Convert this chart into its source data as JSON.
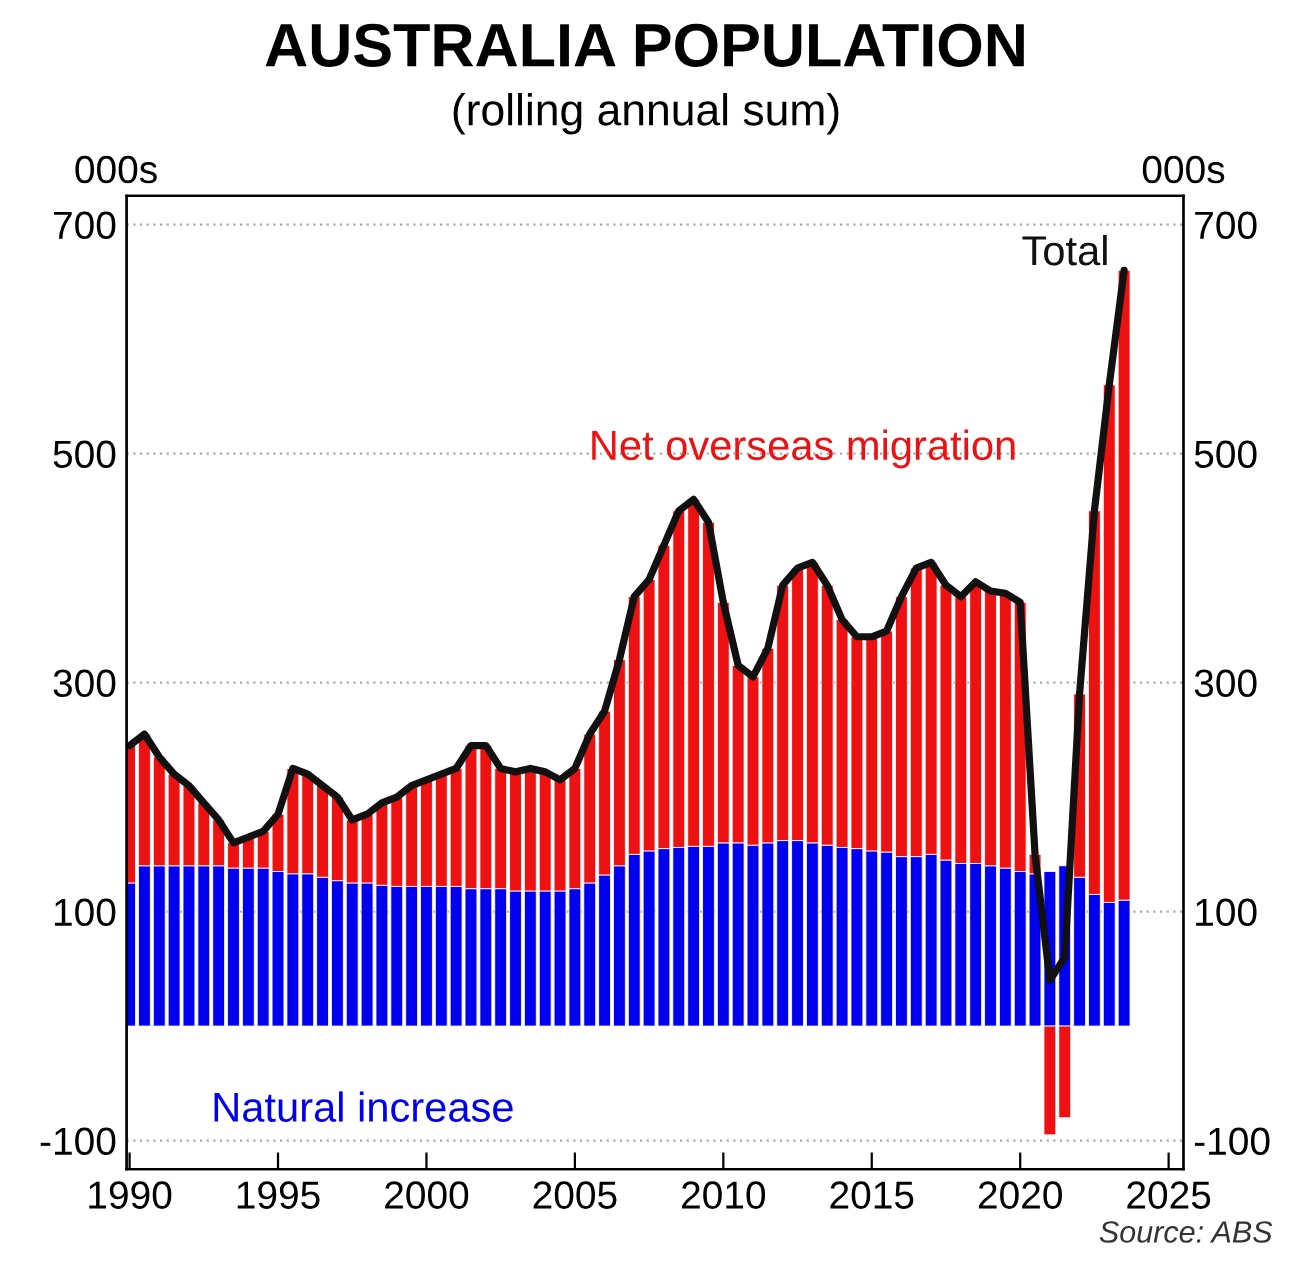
{
  "chart_data": {
    "type": "bar",
    "title": "AUSTRALIA POPULATION",
    "subtitle": "(rolling annual sum)",
    "ylabel": "000s",
    "y2label": "000s",
    "x": [
      1990.0,
      1990.5,
      1991.0,
      1991.5,
      1992.0,
      1992.5,
      1993.0,
      1993.5,
      1994.0,
      1994.5,
      1995.0,
      1995.5,
      1996.0,
      1996.5,
      1997.0,
      1997.5,
      1998.0,
      1998.5,
      1999.0,
      1999.5,
      2000.0,
      2000.5,
      2001.0,
      2001.5,
      2002.0,
      2002.5,
      2003.0,
      2003.5,
      2004.0,
      2004.5,
      2005.0,
      2005.5,
      2006.0,
      2006.5,
      2007.0,
      2007.5,
      2008.0,
      2008.5,
      2009.0,
      2009.5,
      2010.0,
      2010.5,
      2011.0,
      2011.5,
      2012.0,
      2012.5,
      2013.0,
      2013.5,
      2014.0,
      2014.5,
      2015.0,
      2015.5,
      2016.0,
      2016.5,
      2017.0,
      2017.5,
      2018.0,
      2018.5,
      2019.0,
      2019.5,
      2020.0,
      2020.5,
      2021.0,
      2021.5,
      2022.0,
      2022.5,
      2023.0,
      2023.5
    ],
    "stacked": true,
    "series": [
      {
        "name": "Natural increase",
        "color": "#0000ee",
        "values": [
          125,
          140,
          140,
          140,
          140,
          140,
          140,
          138,
          138,
          138,
          135,
          133,
          133,
          130,
          127,
          125,
          125,
          123,
          122,
          122,
          122,
          122,
          122,
          120,
          120,
          120,
          118,
          118,
          118,
          118,
          120,
          125,
          132,
          140,
          150,
          153,
          155,
          156,
          157,
          157,
          160,
          160,
          158,
          160,
          162,
          162,
          160,
          158,
          156,
          155,
          153,
          152,
          148,
          148,
          150,
          145,
          142,
          142,
          140,
          138,
          135,
          133,
          135,
          140,
          130,
          115,
          108,
          110
        ]
      },
      {
        "name": "Net overseas migration",
        "color": "#ee1111",
        "values": [
          120,
          115,
          95,
          80,
          70,
          55,
          40,
          22,
          27,
          32,
          50,
          92,
          87,
          80,
          73,
          55,
          60,
          72,
          78,
          88,
          93,
          98,
          103,
          125,
          125,
          105,
          104,
          107,
          104,
          97,
          105,
          130,
          143,
          180,
          225,
          237,
          265,
          294,
          303,
          283,
          210,
          155,
          147,
          170,
          223,
          238,
          245,
          227,
          199,
          185,
          187,
          193,
          227,
          252,
          255,
          240,
          233,
          246,
          240,
          240,
          235,
          17,
          -95,
          -80,
          160,
          335,
          452,
          550
        ]
      },
      {
        "name": "Total",
        "type": "line",
        "color": "#111111",
        "values": [
          245,
          255,
          235,
          220,
          210,
          195,
          180,
          160,
          165,
          170,
          185,
          225,
          220,
          210,
          200,
          180,
          185,
          195,
          200,
          210,
          215,
          220,
          225,
          245,
          245,
          225,
          222,
          225,
          222,
          215,
          225,
          255,
          275,
          320,
          375,
          390,
          420,
          450,
          460,
          440,
          370,
          315,
          305,
          330,
          385,
          400,
          405,
          385,
          355,
          340,
          340,
          345,
          375,
          400,
          405,
          385,
          375,
          388,
          380,
          378,
          370,
          150,
          40,
          60,
          290,
          450,
          560,
          660
        ]
      }
    ],
    "xlim": [
      1989.9,
      2025.5
    ],
    "xticks": [
      1990,
      1995,
      2000,
      2005,
      2010,
      2015,
      2020,
      2025
    ],
    "ylim": [
      -125,
      725
    ],
    "yticks": [
      -100,
      100,
      300,
      500,
      700
    ],
    "y2lim": [
      -125,
      725
    ],
    "y2ticks": [
      -100,
      100,
      300,
      500,
      700
    ],
    "grid": "y",
    "annotations": [
      "Source: ABS"
    ]
  }
}
